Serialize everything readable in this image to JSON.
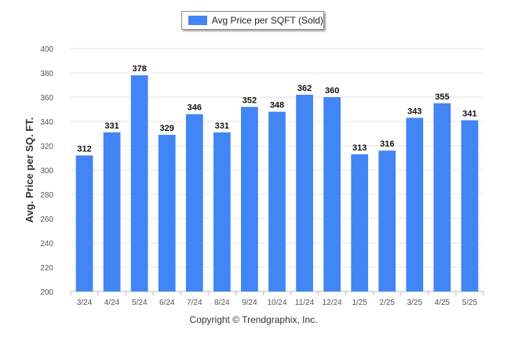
{
  "chart_data": {
    "type": "bar",
    "categories": [
      "3/24",
      "4/24",
      "5/24",
      "6/24",
      "7/24",
      "8/24",
      "9/24",
      "10/24",
      "11/24",
      "12/24",
      "1/25",
      "2/25",
      "3/25",
      "4/25",
      "5/25"
    ],
    "series": [
      {
        "name": "Avg Price per SQFT (Sold)",
        "values": [
          312,
          331,
          378,
          329,
          346,
          331,
          352,
          348,
          362,
          360,
          313,
          316,
          343,
          355,
          341
        ]
      }
    ],
    "xlabel": "",
    "ylabel": "Avg. Price per SQ. FT.",
    "ylim": [
      200,
      400
    ],
    "yticks": [
      200,
      220,
      240,
      260,
      280,
      300,
      320,
      340,
      360,
      380,
      400
    ],
    "grid": true,
    "legend": "top-center",
    "bar_color": "#4285f4"
  },
  "footer": {
    "text": "Copyright © Trendgraphix, Inc."
  }
}
